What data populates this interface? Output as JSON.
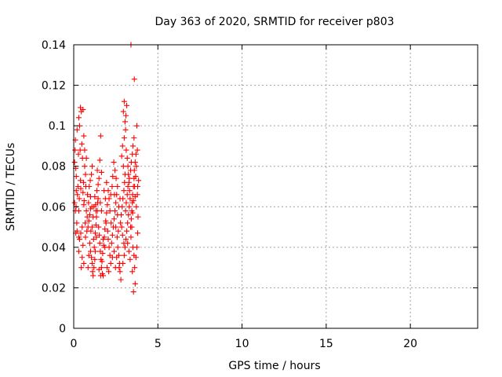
{
  "chart_data": {
    "type": "scatter",
    "title": "Day 363 of 2020, SRMTID for receiver p803",
    "xlabel": "GPS time / hours",
    "ylabel": "SRMTID / TECUs",
    "xlim": [
      0,
      24
    ],
    "ylim": [
      0,
      0.14
    ],
    "x_ticks": [
      0,
      5,
      10,
      15,
      20
    ],
    "x_tick_labels": [
      "0",
      "5",
      "10",
      "15",
      "20"
    ],
    "y_ticks": [
      0,
      0.02,
      0.04,
      0.06,
      0.08,
      0.1,
      0.12,
      0.14
    ],
    "y_tick_labels": [
      "0",
      "0.02",
      "0.04",
      "0.06",
      "0.08",
      "0.1",
      "0.12",
      "0.14"
    ],
    "grid": true,
    "marker": "plus",
    "series": [
      {
        "color": "#ff0000",
        "points": [
          [
            0.05,
            0.082
          ],
          [
            0.08,
            0.088
          ],
          [
            0.1,
            0.093
          ],
          [
            0.12,
            0.079
          ],
          [
            0.15,
            0.075
          ],
          [
            0.05,
            0.062
          ],
          [
            0.1,
            0.058
          ],
          [
            0.14,
            0.06
          ],
          [
            0.18,
            0.052
          ],
          [
            0.2,
            0.048
          ],
          [
            0.12,
            0.047
          ],
          [
            0.25,
            0.07
          ],
          [
            0.22,
            0.066
          ],
          [
            0.3,
            0.058
          ],
          [
            0.35,
            0.1
          ],
          [
            0.4,
            0.109
          ],
          [
            0.45,
            0.107
          ],
          [
            0.3,
            0.104
          ],
          [
            0.2,
            0.098
          ],
          [
            0.55,
            0.108
          ],
          [
            0.6,
            0.095
          ],
          [
            0.48,
            0.091
          ],
          [
            0.38,
            0.088
          ],
          [
            0.28,
            0.086
          ],
          [
            0.52,
            0.084
          ],
          [
            0.65,
            0.08
          ],
          [
            0.7,
            0.076
          ],
          [
            0.58,
            0.072
          ],
          [
            0.42,
            0.069
          ],
          [
            0.33,
            0.064
          ],
          [
            0.6,
            0.061
          ],
          [
            0.75,
            0.058
          ],
          [
            0.8,
            0.055
          ],
          [
            0.68,
            0.052
          ],
          [
            0.5,
            0.05
          ],
          [
            0.42,
            0.047
          ],
          [
            0.35,
            0.044
          ],
          [
            0.55,
            0.041
          ],
          [
            0.3,
            0.038
          ],
          [
            0.5,
            0.035
          ],
          [
            0.45,
            0.03
          ],
          [
            0.6,
            0.032
          ],
          [
            0.7,
            0.045
          ],
          [
            0.78,
            0.048
          ],
          [
            0.85,
            0.05
          ],
          [
            0.9,
            0.053
          ],
          [
            0.95,
            0.056
          ],
          [
            1.0,
            0.059
          ],
          [
            0.88,
            0.062
          ],
          [
            0.82,
            0.066
          ],
          [
            0.92,
            0.07
          ],
          [
            0.98,
            0.073
          ],
          [
            1.05,
            0.076
          ],
          [
            1.1,
            0.08
          ],
          [
            0.75,
            0.084
          ],
          [
            0.65,
            0.088
          ],
          [
            0.55,
            0.067
          ],
          [
            0.62,
            0.063
          ],
          [
            0.72,
            0.07
          ],
          [
            0.4,
            0.073
          ],
          [
            0.95,
            0.042
          ],
          [
            1.0,
            0.038
          ],
          [
            1.05,
            0.035
          ],
          [
            1.1,
            0.032
          ],
          [
            1.12,
            0.028
          ],
          [
            1.15,
            0.026
          ],
          [
            1.2,
            0.03
          ],
          [
            1.25,
            0.034
          ],
          [
            1.22,
            0.04
          ],
          [
            1.18,
            0.044
          ],
          [
            1.28,
            0.047
          ],
          [
            1.32,
            0.051
          ],
          [
            1.35,
            0.055
          ],
          [
            1.4,
            0.058
          ],
          [
            1.3,
            0.061
          ],
          [
            1.25,
            0.065
          ],
          [
            1.38,
            0.068
          ],
          [
            1.45,
            0.071
          ],
          [
            1.5,
            0.074
          ],
          [
            1.42,
            0.062
          ],
          [
            1.48,
            0.05
          ],
          [
            1.52,
            0.046
          ],
          [
            1.55,
            0.042
          ],
          [
            1.58,
            0.038
          ],
          [
            1.62,
            0.034
          ],
          [
            1.65,
            0.03
          ],
          [
            1.7,
            0.027
          ],
          [
            1.75,
            0.026
          ],
          [
            1.6,
            0.026
          ],
          [
            1.5,
            0.029
          ],
          [
            1.68,
            0.033
          ],
          [
            1.72,
            0.037
          ],
          [
            1.78,
            0.041
          ],
          [
            1.82,
            0.045
          ],
          [
            1.85,
            0.049
          ],
          [
            1.9,
            0.053
          ],
          [
            1.95,
            0.057
          ],
          [
            2.0,
            0.061
          ],
          [
            1.88,
            0.064
          ],
          [
            1.8,
            0.068
          ],
          [
            1.92,
            0.052
          ],
          [
            2.02,
            0.048
          ],
          [
            2.05,
            0.044
          ],
          [
            2.1,
            0.04
          ],
          [
            2.15,
            0.036
          ],
          [
            2.2,
            0.032
          ],
          [
            2.08,
            0.028
          ],
          [
            1.98,
            0.03
          ],
          [
            2.25,
            0.042
          ],
          [
            2.3,
            0.046
          ],
          [
            1.4,
            0.078
          ],
          [
            1.6,
            0.095
          ],
          [
            1.55,
            0.083
          ],
          [
            1.65,
            0.077
          ],
          [
            1.35,
            0.045
          ],
          [
            1.28,
            0.038
          ],
          [
            1.1,
            0.05
          ],
          [
            1.15,
            0.055
          ],
          [
            1.02,
            0.048
          ],
          [
            0.9,
            0.036
          ],
          [
            2.35,
            0.05
          ],
          [
            2.4,
            0.054
          ],
          [
            2.45,
            0.058
          ],
          [
            2.5,
            0.062
          ],
          [
            2.55,
            0.066
          ],
          [
            2.6,
            0.07
          ],
          [
            2.52,
            0.074
          ],
          [
            2.45,
            0.078
          ],
          [
            2.38,
            0.082
          ],
          [
            2.32,
            0.075
          ],
          [
            2.58,
            0.045
          ],
          [
            2.62,
            0.04
          ],
          [
            2.68,
            0.036
          ],
          [
            2.72,
            0.032
          ],
          [
            2.75,
            0.028
          ],
          [
            2.8,
            0.024
          ],
          [
            2.7,
            0.03
          ],
          [
            2.65,
            0.048
          ],
          [
            2.78,
            0.052
          ],
          [
            2.82,
            0.056
          ],
          [
            2.88,
            0.06
          ],
          [
            2.92,
            0.064
          ],
          [
            2.98,
            0.068
          ],
          [
            3.02,
            0.072
          ],
          [
            3.05,
            0.076
          ],
          [
            2.95,
            0.08
          ],
          [
            2.85,
            0.085
          ],
          [
            2.9,
            0.09
          ],
          [
            3.0,
            0.094
          ],
          [
            3.08,
            0.098
          ],
          [
            3.1,
            0.105
          ],
          [
            3.15,
            0.11
          ],
          [
            3.0,
            0.112
          ],
          [
            2.95,
            0.107
          ],
          [
            3.05,
            0.102
          ],
          [
            3.12,
            0.088
          ],
          [
            3.18,
            0.084
          ],
          [
            3.22,
            0.08
          ],
          [
            3.25,
            0.076
          ],
          [
            3.28,
            0.072
          ],
          [
            3.32,
            0.068
          ],
          [
            3.35,
            0.064
          ],
          [
            3.3,
            0.06
          ],
          [
            3.25,
            0.056
          ],
          [
            3.2,
            0.052
          ],
          [
            3.15,
            0.048
          ],
          [
            3.1,
            0.044
          ],
          [
            3.05,
            0.04
          ],
          [
            3.0,
            0.036
          ],
          [
            2.92,
            0.032
          ],
          [
            3.38,
            0.05
          ],
          [
            3.42,
            0.054
          ],
          [
            3.45,
            0.058
          ],
          [
            3.48,
            0.062
          ],
          [
            3.5,
            0.066
          ],
          [
            3.55,
            0.07
          ],
          [
            3.58,
            0.074
          ],
          [
            3.6,
            0.078
          ],
          [
            3.65,
            0.082
          ],
          [
            3.7,
            0.086
          ],
          [
            3.4,
            0.14
          ],
          [
            3.6,
            0.123
          ],
          [
            3.75,
            0.1
          ],
          [
            3.78,
            0.088
          ],
          [
            3.72,
            0.08
          ],
          [
            3.68,
            0.075
          ],
          [
            3.62,
            0.07
          ],
          [
            3.55,
            0.063
          ],
          [
            3.5,
            0.057
          ],
          [
            3.45,
            0.05
          ],
          [
            3.4,
            0.045
          ],
          [
            3.52,
            0.04
          ],
          [
            3.58,
            0.036
          ],
          [
            3.62,
            0.03
          ],
          [
            3.65,
            0.022
          ],
          [
            3.55,
            0.018
          ],
          [
            3.7,
            0.035
          ],
          [
            3.75,
            0.04
          ],
          [
            3.8,
            0.047
          ],
          [
            3.82,
            0.055
          ],
          [
            3.48,
            0.028
          ],
          [
            3.35,
            0.034
          ],
          [
            3.28,
            0.038
          ],
          [
            3.2,
            0.042
          ],
          [
            2.55,
            0.035
          ],
          [
            2.48,
            0.03
          ],
          [
            2.4,
            0.038
          ],
          [
            2.3,
            0.035
          ],
          [
            2.22,
            0.052
          ],
          [
            2.15,
            0.058
          ],
          [
            2.1,
            0.064
          ],
          [
            2.05,
            0.068
          ],
          [
            1.95,
            0.072
          ],
          [
            1.85,
            0.04
          ],
          [
            1.75,
            0.044
          ],
          [
            1.65,
            0.058
          ],
          [
            1.58,
            0.062
          ],
          [
            1.45,
            0.064
          ],
          [
            1.32,
            0.058
          ],
          [
            1.2,
            0.06
          ],
          [
            0.85,
            0.03
          ],
          [
            1.0,
            0.065
          ],
          [
            1.08,
            0.06
          ],
          [
            2.2,
            0.066
          ],
          [
            2.28,
            0.07
          ],
          [
            2.42,
            0.066
          ],
          [
            2.5,
            0.05
          ],
          [
            2.6,
            0.056
          ],
          [
            2.68,
            0.06
          ],
          [
            2.75,
            0.064
          ],
          [
            2.85,
            0.05
          ],
          [
            2.9,
            0.046
          ],
          [
            2.98,
            0.042
          ],
          [
            3.08,
            0.058
          ],
          [
            3.12,
            0.062
          ],
          [
            3.18,
            0.066
          ],
          [
            3.22,
            0.07
          ],
          [
            3.3,
            0.074
          ],
          [
            3.38,
            0.078
          ],
          [
            3.42,
            0.082
          ],
          [
            3.48,
            0.086
          ],
          [
            3.52,
            0.09
          ],
          [
            3.58,
            0.094
          ],
          [
            3.65,
            0.065
          ],
          [
            3.72,
            0.06
          ],
          [
            3.78,
            0.066
          ],
          [
            3.8,
            0.07
          ],
          [
            3.85,
            0.073
          ],
          [
            0.3,
            0.045
          ],
          [
            0.15,
            0.068
          ]
        ]
      }
    ]
  }
}
